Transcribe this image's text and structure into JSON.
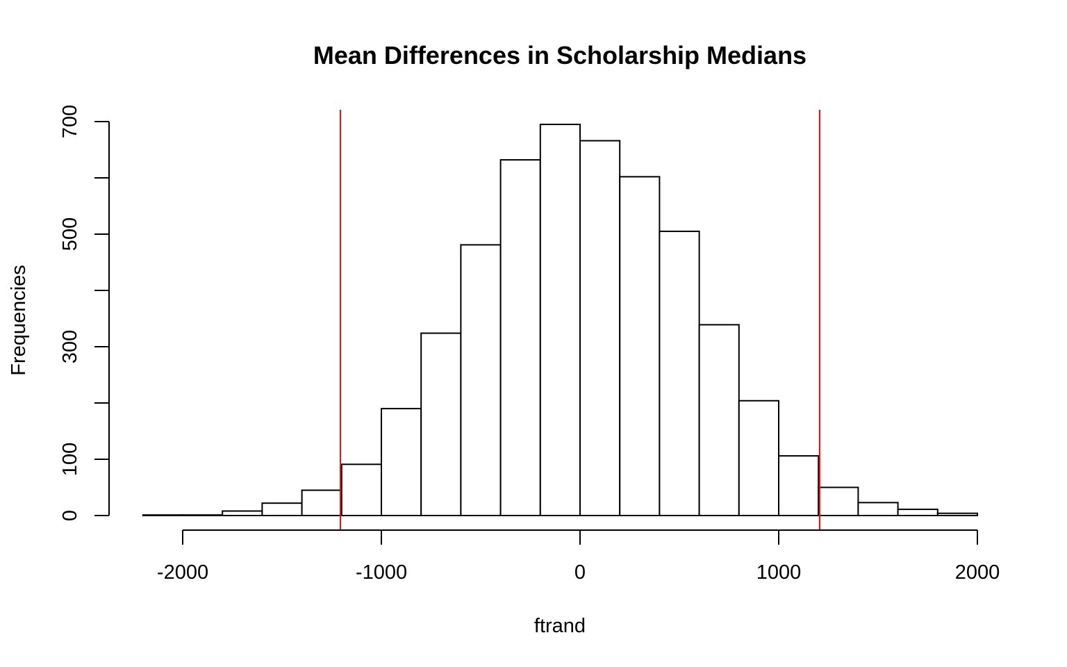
{
  "chart_data": {
    "type": "bar",
    "title": "Mean Differences in Scholarship Medians",
    "xlabel": "ftrand",
    "ylabel": "Frequencies",
    "bin_edges": [
      -2200,
      -2000,
      -1800,
      -1600,
      -1400,
      -1200,
      -1000,
      -800,
      -600,
      -400,
      -200,
      0,
      200,
      400,
      600,
      800,
      1000,
      1200,
      1400,
      1600,
      1800,
      2000
    ],
    "values": [
      1,
      1,
      8,
      22,
      45,
      91,
      190,
      324,
      481,
      632,
      695,
      666,
      602,
      505,
      339,
      204,
      106,
      50,
      23,
      11,
      4
    ],
    "xlim": [
      -2200,
      2000
    ],
    "ylim": [
      0,
      700
    ],
    "x_ticks": [
      -2000,
      -1000,
      0,
      1000,
      2000
    ],
    "x_tick_labels": [
      "-2000",
      "-1000",
      "0",
      "1000",
      "2000"
    ],
    "y_ticks": [
      0,
      100,
      200,
      300,
      400,
      500,
      600,
      700
    ],
    "y_tick_labels": [
      "0",
      "100",
      "",
      "300",
      "",
      "500",
      "",
      "700"
    ],
    "reference_lines": [
      -1206,
      1206
    ],
    "reference_line_color": "#ff0000",
    "bar_fill": "#ffffff",
    "bar_stroke": "#000000",
    "grid": false
  }
}
